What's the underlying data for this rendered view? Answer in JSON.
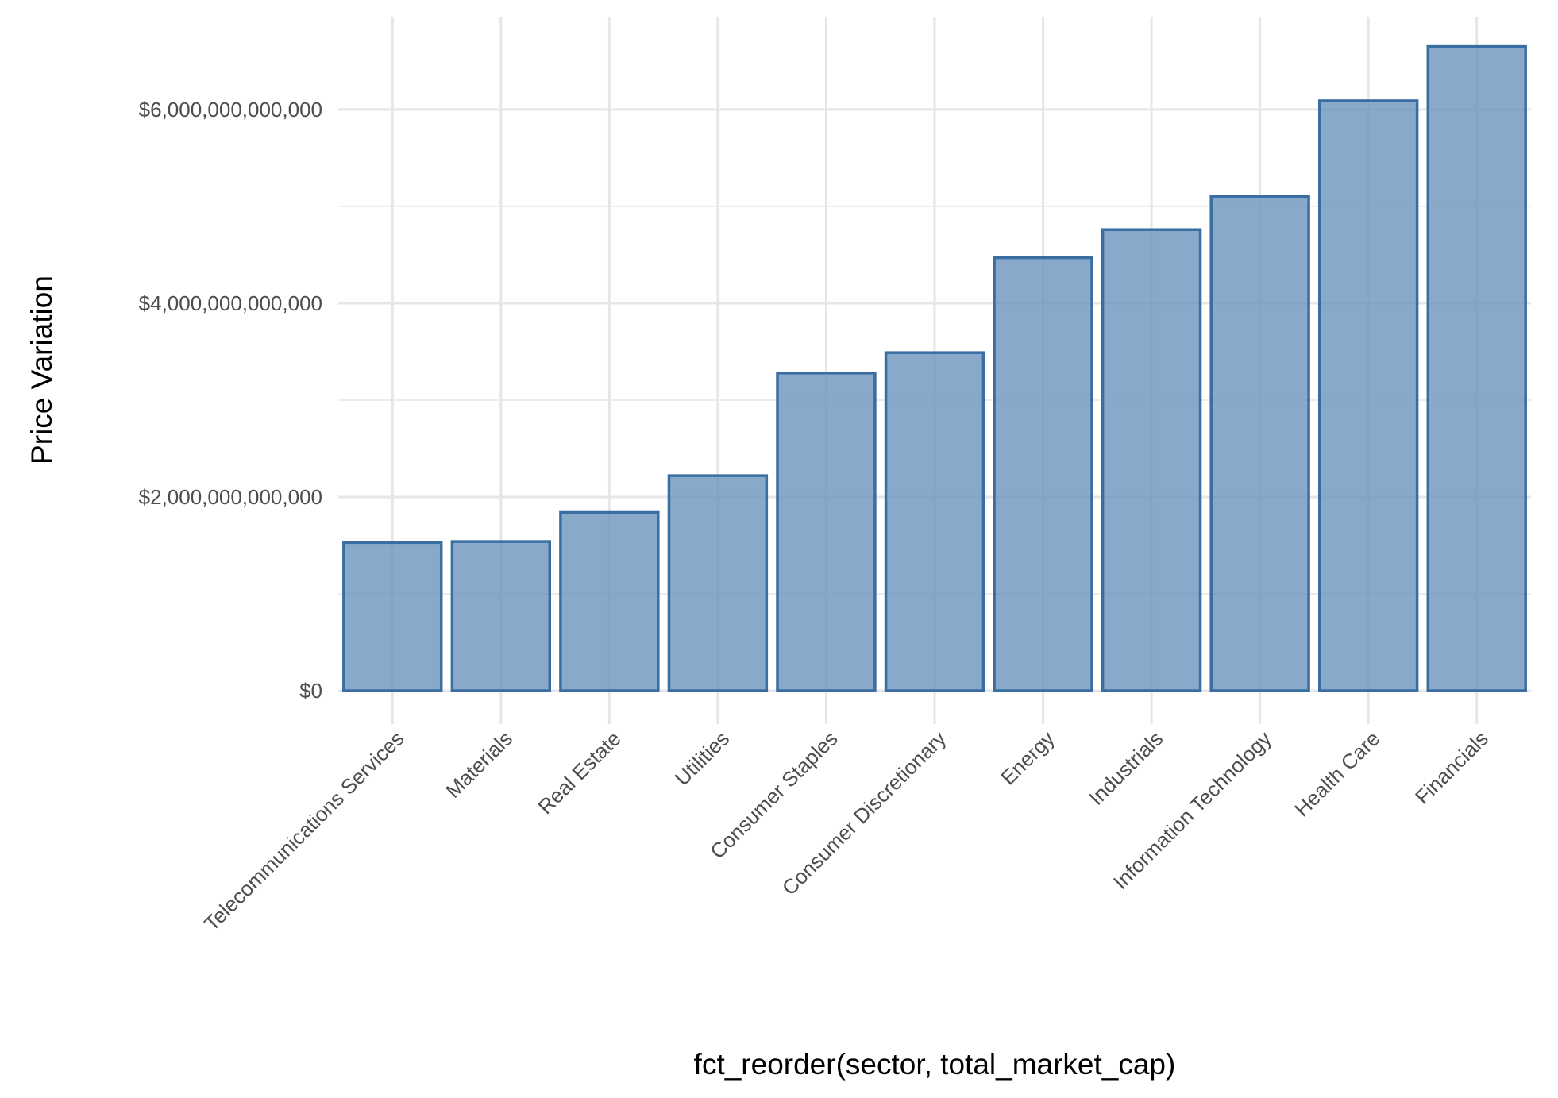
{
  "chart_data": {
    "type": "bar",
    "xlabel": "fct_reorder(sector, total_market_cap)",
    "ylabel": "Price Variation",
    "categories": [
      "Telecommunications Services",
      "Materials",
      "Real Estate",
      "Utilities",
      "Consumer Staples",
      "Consumer Discretionary",
      "Energy",
      "Industrials",
      "Information Technology",
      "Health Care",
      "Financials"
    ],
    "values": [
      1530000000000,
      1540000000000,
      1840000000000,
      2220000000000,
      3280000000000,
      3490000000000,
      4470000000000,
      4760000000000,
      5100000000000,
      6090000000000,
      6650000000000
    ],
    "ylim": [
      0,
      6950000000000
    ],
    "yticks": [
      0,
      2000000000000,
      4000000000000,
      6000000000000
    ],
    "ytick_labels": [
      "$0",
      "$2,000,000,000,000",
      "$4,000,000,000,000",
      "$6,000,000,000,000"
    ],
    "grid": true,
    "colors": {
      "fill": "#6b93bd",
      "stroke": "#3a6da1"
    }
  }
}
